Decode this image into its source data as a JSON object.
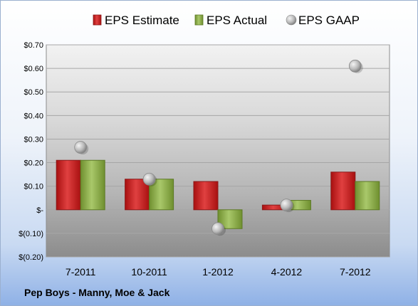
{
  "footer": {
    "company": "Pep Boys - Manny, Moe & Jack"
  },
  "chart_data": {
    "type": "bar",
    "title": "",
    "xlabel": "",
    "ylabel": "",
    "categories": [
      "7-2011",
      "10-2011",
      "1-2012",
      "4-2012",
      "7-2012"
    ],
    "series": [
      {
        "name": "EPS Estimate",
        "kind": "bar",
        "color": "#d42b2b",
        "values": [
          0.21,
          0.13,
          0.12,
          0.02,
          0.16
        ]
      },
      {
        "name": "EPS Actual",
        "kind": "bar",
        "color": "#8fb24a",
        "values": [
          0.21,
          0.13,
          -0.08,
          0.04,
          0.12
        ]
      },
      {
        "name": "EPS GAAP",
        "kind": "marker",
        "color": "#b8b8b8",
        "values": [
          0.265,
          0.13,
          -0.08,
          0.02,
          0.61
        ]
      }
    ],
    "ylim": [
      -0.2,
      0.7
    ],
    "yticks": [
      0.7,
      0.6,
      0.5,
      0.4,
      0.3,
      0.2,
      0.1,
      0,
      -0.1,
      -0.2
    ],
    "ytick_labels": [
      "$0.70",
      "$0.60",
      "$0.50",
      "$0.40",
      "$0.30",
      "$0.20",
      "$0.10",
      "$-",
      "$(0.10)",
      "$(0.20)"
    ],
    "grid": true,
    "legend_position": "top"
  }
}
